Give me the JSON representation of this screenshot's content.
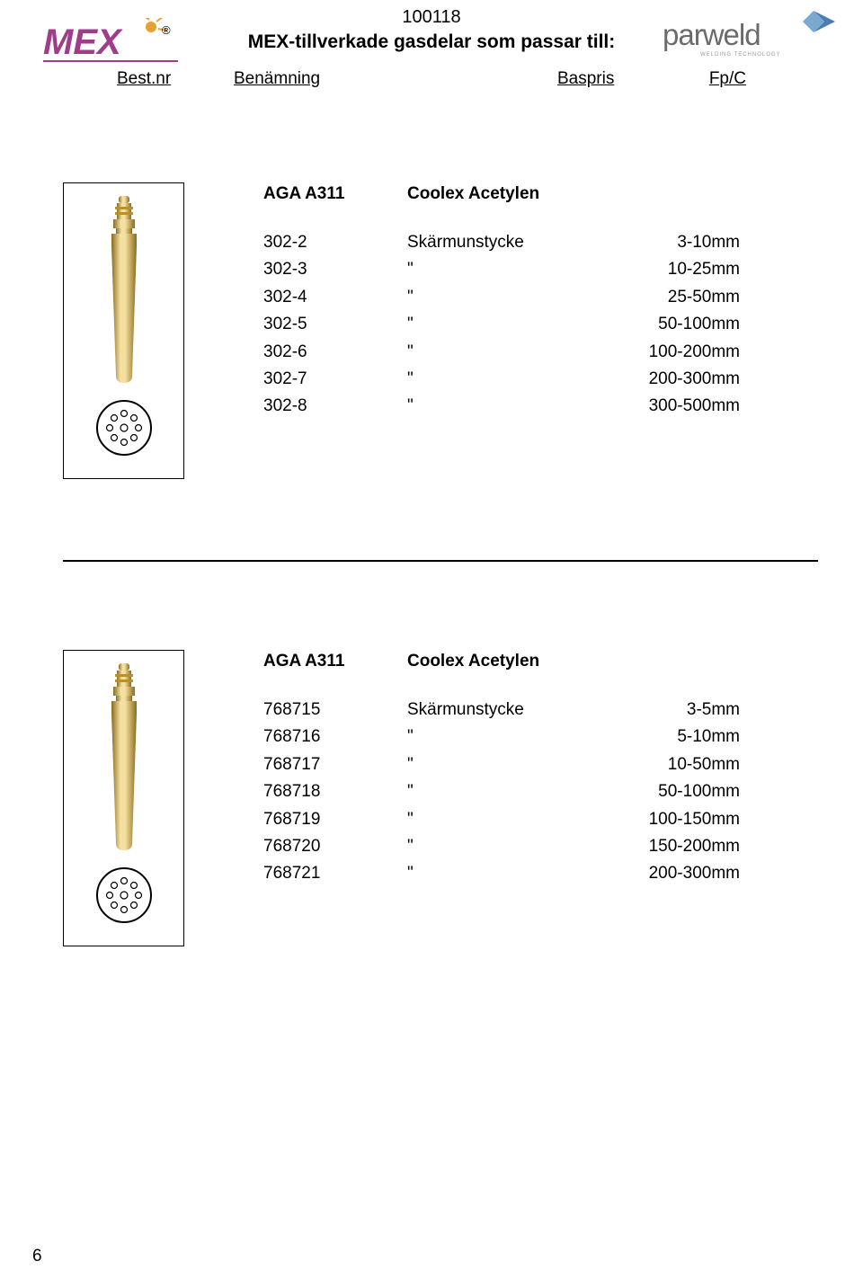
{
  "header": {
    "doc_number": "100118",
    "subtitle": "MEX-tillverkade gasdelar som passar  till:",
    "logo_left_text": "MEX",
    "logo_left_color": "#a03d8a",
    "logo_left_reg": "®",
    "logo_right_text": "parweld",
    "logo_right_color": "#6b6b6b",
    "col1": "Best.nr",
    "col2": "Benämning",
    "col3": "Baspris",
    "col4": "Fp/C"
  },
  "section1": {
    "title_code": "AGA A311",
    "title_desc": "Coolex Acetylen",
    "rows": [
      {
        "id": "302-2",
        "desc": "Skärmunstycke",
        "val": "3-10mm"
      },
      {
        "id": "302-3",
        "desc": "\"",
        "val": "10-25mm"
      },
      {
        "id": "302-4",
        "desc": "\"",
        "val": "25-50mm"
      },
      {
        "id": "302-5",
        "desc": "\"",
        "val": "50-100mm"
      },
      {
        "id": "302-6",
        "desc": "\"",
        "val": "100-200mm"
      },
      {
        "id": "302-7",
        "desc": "\"",
        "val": "200-300mm"
      },
      {
        "id": "302-8",
        "desc": "\"",
        "val": "300-500mm"
      }
    ],
    "nozzle_color_main": "#d4a846",
    "nozzle_color_highlight": "#f4e0a0",
    "nozzle_color_shadow": "#8a6b1f"
  },
  "section2": {
    "title_code": "AGA A311",
    "title_desc": "Coolex Acetylen",
    "rows": [
      {
        "id": "768715",
        "desc": "Skärmunstycke",
        "val": "3-5mm"
      },
      {
        "id": "768716",
        "desc": "\"",
        "val": "5-10mm"
      },
      {
        "id": "768717",
        "desc": "\"",
        "val": "10-50mm"
      },
      {
        "id": "768718",
        "desc": "\"",
        "val": "50-100mm"
      },
      {
        "id": "768719",
        "desc": "\"",
        "val": "100-150mm"
      },
      {
        "id": "768720",
        "desc": "\"",
        "val": "150-200mm"
      },
      {
        "id": "768721",
        "desc": "\"",
        "val": "200-300mm"
      }
    ],
    "nozzle_color_main": "#d4a846",
    "nozzle_color_highlight": "#f4e0a0",
    "nozzle_color_shadow": "#8a6b1f"
  },
  "page_number": "6"
}
